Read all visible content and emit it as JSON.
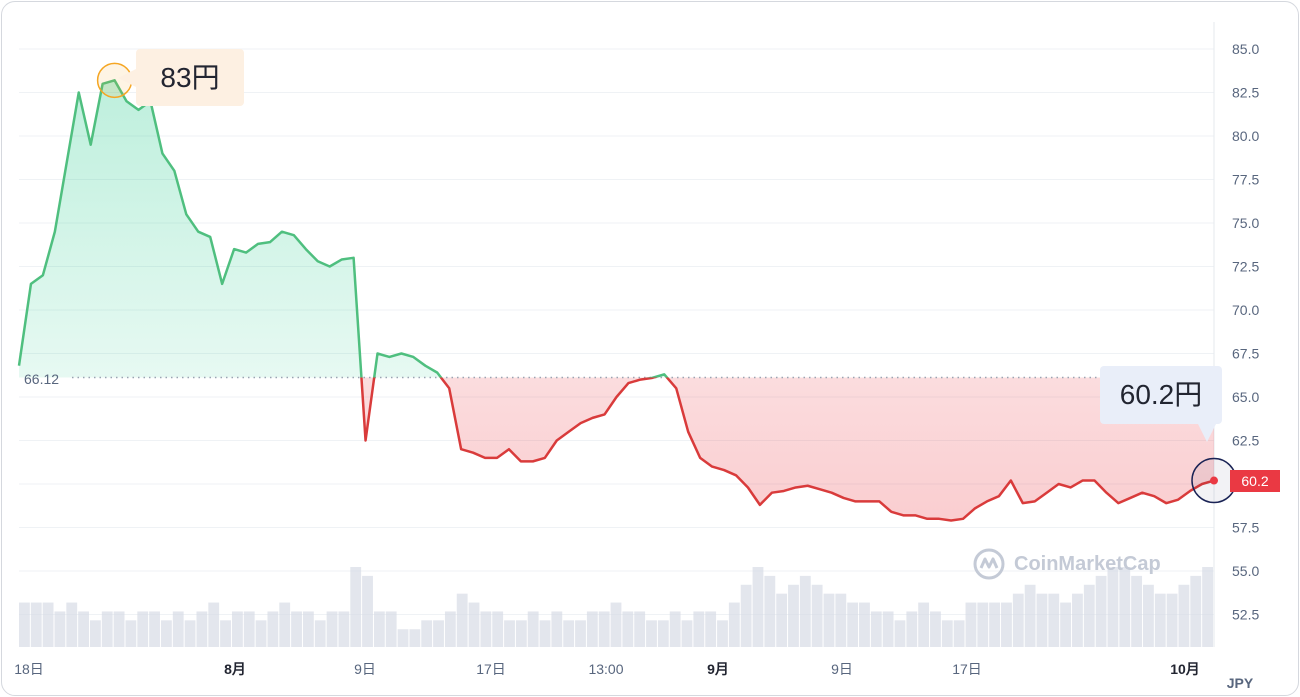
{
  "chart_data": {
    "type": "area",
    "currency": "JPY",
    "baseline": 66.12,
    "baseline_label": "66.12",
    "ylim": [
      50.0,
      87.0
    ],
    "y_ticks": [
      "85.0",
      "82.5",
      "80.0",
      "77.5",
      "75.0",
      "72.5",
      "70.0",
      "67.5",
      "65.0",
      "62.5",
      "60.0",
      "57.5",
      "55.0",
      "52.5"
    ],
    "x_ticks": [
      {
        "label": "18日",
        "bold": false
      },
      {
        "label": "8月",
        "bold": true
      },
      {
        "label": "9日",
        "bold": false
      },
      {
        "label": "17日",
        "bold": false
      },
      {
        "label": "13:00",
        "bold": false
      },
      {
        "label": "9月",
        "bold": true
      },
      {
        "label": "9日",
        "bold": false
      },
      {
        "label": "17日",
        "bold": false
      },
      {
        "label": "10月",
        "bold": true
      }
    ],
    "series": [
      {
        "x": [
          0,
          1,
          2,
          3,
          4,
          5,
          6,
          7,
          8,
          9,
          10,
          11,
          12,
          13,
          14,
          15,
          16,
          17,
          18,
          19,
          20,
          21,
          22,
          23,
          24,
          25,
          26,
          27,
          28,
          29,
          30,
          31,
          32,
          33,
          34,
          35,
          36,
          37,
          38,
          39,
          40,
          41,
          42,
          43,
          44,
          45,
          46,
          47,
          48,
          49,
          50,
          51,
          52,
          53,
          54,
          55,
          56,
          57,
          58,
          59,
          60,
          61,
          62,
          63,
          64,
          65,
          66,
          67,
          68,
          69,
          70,
          71,
          72,
          73,
          74,
          75,
          76,
          77,
          78,
          79,
          80,
          81,
          82,
          83,
          84,
          85,
          86,
          87,
          88,
          89,
          90,
          91,
          92,
          93,
          94,
          95,
          96,
          97,
          98,
          99,
          100
        ],
        "values": [
          66.8,
          71.5,
          72.0,
          74.5,
          78.5,
          82.5,
          79.5,
          83.0,
          83.2,
          82.0,
          81.5,
          82.0,
          79.0,
          78.0,
          75.5,
          74.5,
          74.2,
          71.5,
          73.5,
          73.3,
          73.8,
          73.9,
          74.5,
          74.3,
          73.5,
          72.8,
          72.5,
          72.9,
          73.0,
          62.5,
          67.5,
          67.3,
          67.5,
          67.3,
          66.8,
          66.4,
          65.5,
          62.0,
          61.8,
          61.5,
          61.5,
          62.0,
          61.3,
          61.3,
          61.5,
          62.5,
          63.0,
          63.5,
          63.8,
          64.0,
          65.0,
          65.8,
          66.0,
          66.1,
          66.3,
          65.5,
          63.0,
          61.5,
          61.0,
          60.8,
          60.5,
          59.8,
          58.8,
          59.5,
          59.6,
          59.8,
          59.9,
          59.7,
          59.5,
          59.2,
          59.0,
          59.0,
          59.0,
          58.4,
          58.2,
          58.2,
          58.0,
          58.0,
          57.9,
          58.0,
          58.6,
          59.0,
          59.3,
          60.2,
          58.9,
          59.0,
          59.5,
          60.0,
          59.8,
          60.2,
          60.2,
          59.5,
          58.9,
          59.2,
          59.5,
          59.3,
          58.9,
          59.1,
          59.6,
          60.0,
          60.2
        ]
      }
    ],
    "volume": [
      5,
      5,
      5,
      4,
      5,
      4,
      3,
      4,
      4,
      3,
      4,
      4,
      3,
      4,
      3,
      4,
      5,
      3,
      4,
      4,
      3,
      4,
      5,
      4,
      4,
      3,
      4,
      4,
      9,
      8,
      4,
      4,
      2,
      2,
      3,
      3,
      4,
      6,
      5,
      4,
      4,
      3,
      3,
      4,
      3,
      4,
      3,
      3,
      4,
      4,
      5,
      4,
      4,
      3,
      3,
      4,
      3,
      4,
      4,
      3,
      5,
      7,
      9,
      8,
      6,
      7,
      8,
      7,
      6,
      6,
      5,
      5,
      4,
      4,
      3,
      4,
      5,
      4,
      3,
      3,
      5,
      5,
      5,
      5,
      6,
      7,
      6,
      6,
      5,
      6,
      7,
      8,
      9,
      9,
      8,
      7,
      6,
      6,
      7,
      8,
      9
    ],
    "high_label": "83円",
    "current_label": "60.2円",
    "current_tag": "60.2"
  },
  "watermark": "CoinMarketCap",
  "colors": {
    "up": "#16c784",
    "up_line": "#4fbf7f",
    "down": "#ea3943",
    "down_line": "#d93b3b",
    "grid": "#eff2f5",
    "volume": "#d7dbe6",
    "high_marker": "#f5a623",
    "current_marker": "#1a2355"
  }
}
